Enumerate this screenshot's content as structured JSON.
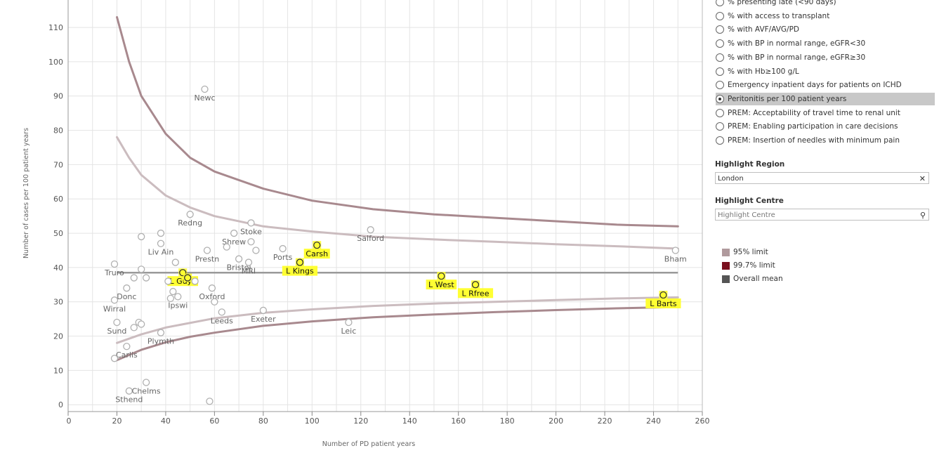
{
  "chart_data": {
    "type": "scatter",
    "title": "",
    "xlabel": "Number of PD patient years",
    "ylabel": "Number of cases per 100 patient years",
    "xlim": [
      0,
      260
    ],
    "ylim": [
      -2,
      118
    ],
    "x_ticks": [
      0,
      20,
      40,
      60,
      80,
      100,
      120,
      140,
      160,
      180,
      200,
      220,
      240,
      260
    ],
    "x_tick_labels": [
      "0",
      "20",
      "40",
      "60",
      "80",
      "100",
      "120",
      "140",
      "160",
      "180",
      "200",
      "220",
      "240",
      "260"
    ],
    "y_ticks": [
      0,
      10,
      20,
      30,
      40,
      50,
      60,
      70,
      80,
      90,
      100,
      110
    ],
    "y_tick_labels": [
      "0",
      "10",
      "20",
      "30",
      "40",
      "50",
      "60",
      "70",
      "80",
      "90",
      "100",
      "110"
    ],
    "grid": true,
    "overall_mean": 38.5,
    "limit_curves": [
      {
        "name": "99.7% upper",
        "color": "#a8898e",
        "points": [
          [
            20,
            113
          ],
          [
            25,
            100
          ],
          [
            30,
            90
          ],
          [
            40,
            79
          ],
          [
            50,
            72
          ],
          [
            60,
            68
          ],
          [
            80,
            63
          ],
          [
            100,
            59.5
          ],
          [
            125,
            57
          ],
          [
            150,
            55.5
          ],
          [
            175,
            54.5
          ],
          [
            200,
            53.5
          ],
          [
            225,
            52.5
          ],
          [
            250,
            52
          ]
        ]
      },
      {
        "name": "95% upper",
        "color": "#cbbcbf",
        "points": [
          [
            20,
            78
          ],
          [
            25,
            72
          ],
          [
            30,
            67
          ],
          [
            40,
            61
          ],
          [
            50,
            57.5
          ],
          [
            60,
            55
          ],
          [
            80,
            52
          ],
          [
            100,
            50.5
          ],
          [
            125,
            49
          ],
          [
            150,
            48.2
          ],
          [
            175,
            47.5
          ],
          [
            200,
            46.8
          ],
          [
            225,
            46.2
          ],
          [
            250,
            45.5
          ]
        ]
      },
      {
        "name": "95% lower",
        "color": "#cbbcbf",
        "points": [
          [
            20,
            18
          ],
          [
            30,
            20.5
          ],
          [
            40,
            22.5
          ],
          [
            60,
            25.2
          ],
          [
            80,
            26.8
          ],
          [
            100,
            27.8
          ],
          [
            125,
            28.8
          ],
          [
            150,
            29.5
          ],
          [
            175,
            30
          ],
          [
            200,
            30.5
          ],
          [
            225,
            31
          ],
          [
            250,
            31.3
          ]
        ]
      },
      {
        "name": "99.7% lower",
        "color": "#a8898e",
        "points": [
          [
            20,
            13
          ],
          [
            25,
            14.5
          ],
          [
            30,
            16
          ],
          [
            40,
            18.2
          ],
          [
            50,
            19.8
          ],
          [
            60,
            21
          ],
          [
            80,
            23
          ],
          [
            100,
            24.3
          ],
          [
            125,
            25.5
          ],
          [
            150,
            26.3
          ],
          [
            175,
            27
          ],
          [
            200,
            27.6
          ],
          [
            225,
            28.1
          ],
          [
            250,
            28.5
          ]
        ]
      }
    ],
    "points": [
      {
        "x": 56,
        "y": 92,
        "label": "Newc",
        "highlight": false
      },
      {
        "x": 50,
        "y": 55.5,
        "label": "Redng",
        "highlight": false
      },
      {
        "x": 75,
        "y": 53,
        "label": "Stoke",
        "highlight": false
      },
      {
        "x": 68,
        "y": 50,
        "label": "Shrew",
        "highlight": false
      },
      {
        "x": 124,
        "y": 51,
        "label": "Salford",
        "highlight": false
      },
      {
        "x": 30,
        "y": 49,
        "label": "",
        "highlight": false
      },
      {
        "x": 38,
        "y": 50,
        "label": "",
        "highlight": false
      },
      {
        "x": 38,
        "y": 47,
        "label": "Liv Ain",
        "highlight": false
      },
      {
        "x": 57,
        "y": 45,
        "label": "Prestn",
        "highlight": false
      },
      {
        "x": 65,
        "y": 46,
        "label": "",
        "highlight": false
      },
      {
        "x": 75,
        "y": 47.5,
        "label": "",
        "highlight": false
      },
      {
        "x": 77,
        "y": 45,
        "label": "",
        "highlight": false
      },
      {
        "x": 88,
        "y": 45.5,
        "label": "Ports",
        "highlight": false
      },
      {
        "x": 70,
        "y": 42.5,
        "label": "Bristol",
        "highlight": false
      },
      {
        "x": 74,
        "y": 41.5,
        "label": "MRI",
        "highlight": false
      },
      {
        "x": 102,
        "y": 46.5,
        "label": "Carsh",
        "highlight": true
      },
      {
        "x": 95,
        "y": 41.5,
        "label": "L Kings",
        "highlight": true
      },
      {
        "x": 249,
        "y": 45,
        "label": "Bham",
        "highlight": false
      },
      {
        "x": 19,
        "y": 41,
        "label": "Truro",
        "highlight": false
      },
      {
        "x": 30,
        "y": 39.5,
        "label": "",
        "highlight": false
      },
      {
        "x": 44,
        "y": 41.5,
        "label": "",
        "highlight": false
      },
      {
        "x": 47,
        "y": 38.5,
        "label": "L Guys",
        "highlight": true
      },
      {
        "x": 49,
        "y": 37,
        "label": "",
        "highlight": true
      },
      {
        "x": 52,
        "y": 36,
        "label": "",
        "highlight": false
      },
      {
        "x": 27,
        "y": 37,
        "label": "",
        "highlight": false
      },
      {
        "x": 32,
        "y": 37,
        "label": "",
        "highlight": false
      },
      {
        "x": 41,
        "y": 36,
        "label": "",
        "highlight": false
      },
      {
        "x": 24,
        "y": 34,
        "label": "Donc",
        "highlight": false
      },
      {
        "x": 59,
        "y": 34,
        "label": "Oxford",
        "highlight": false
      },
      {
        "x": 43,
        "y": 33,
        "label": "",
        "highlight": false
      },
      {
        "x": 42,
        "y": 31,
        "label": "",
        "highlight": false
      },
      {
        "x": 45,
        "y": 31.5,
        "label": "Ipswi",
        "highlight": false
      },
      {
        "x": 19,
        "y": 30.5,
        "label": "Wirral",
        "highlight": false
      },
      {
        "x": 60,
        "y": 30,
        "label": "",
        "highlight": false
      },
      {
        "x": 63,
        "y": 27,
        "label": "Leeds",
        "highlight": false
      },
      {
        "x": 80,
        "y": 27.5,
        "label": "Exeter",
        "highlight": false
      },
      {
        "x": 153,
        "y": 37.5,
        "label": "L West",
        "highlight": true
      },
      {
        "x": 167,
        "y": 35,
        "label": "L Rfree",
        "highlight": true
      },
      {
        "x": 244,
        "y": 32,
        "label": "L Barts",
        "highlight": true
      },
      {
        "x": 20,
        "y": 24,
        "label": "Sund",
        "highlight": false
      },
      {
        "x": 27,
        "y": 22.5,
        "label": "",
        "highlight": false
      },
      {
        "x": 29,
        "y": 24,
        "label": "",
        "highlight": false
      },
      {
        "x": 30,
        "y": 23.5,
        "label": "",
        "highlight": false
      },
      {
        "x": 38,
        "y": 21,
        "label": "Plymth",
        "highlight": false
      },
      {
        "x": 115,
        "y": 24,
        "label": "Leic",
        "highlight": false
      },
      {
        "x": 24,
        "y": 17,
        "label": "Carlis",
        "highlight": false
      },
      {
        "x": 19,
        "y": 13.5,
        "label": "",
        "highlight": false
      },
      {
        "x": 25,
        "y": 4,
        "label": "Sthend",
        "highlight": false
      },
      {
        "x": 32,
        "y": 6.5,
        "label": "Chelms",
        "highlight": false
      },
      {
        "x": 58,
        "y": 1,
        "label": "",
        "highlight": false
      }
    ]
  },
  "panel": {
    "measure_options": [
      {
        "label": "% presenting late (<90 days)",
        "selected": false
      },
      {
        "label": "% with access to transplant",
        "selected": false
      },
      {
        "label": "% with AVF/AVG/PD",
        "selected": false
      },
      {
        "label": "% with BP in normal range, eGFR<30",
        "selected": false
      },
      {
        "label": "% with BP in normal range, eGFR≥30",
        "selected": false
      },
      {
        "label": "% with Hb≥100 g/L",
        "selected": false
      },
      {
        "label": "Emergency inpatient days for patients on ICHD",
        "selected": false
      },
      {
        "label": "Peritonitis per 100 patient years",
        "selected": true
      },
      {
        "label": "PREM: Acceptability of travel time to renal unit",
        "selected": false
      },
      {
        "label": "PREM: Enabling participation in care decisions",
        "selected": false
      },
      {
        "label": "PREM: Insertion of needles with minimum pain",
        "selected": false
      }
    ],
    "highlight_region_title": "Highlight Region",
    "highlight_region_value": "London",
    "highlight_centre_title": "Highlight Centre",
    "highlight_centre_placeholder": "Highlight Centre",
    "legend": [
      {
        "label": "95% limit",
        "color": "#b09a9d"
      },
      {
        "label": "99.7% limit",
        "color": "#7a0f1e"
      },
      {
        "label": "Overall mean",
        "color": "#555555"
      }
    ]
  }
}
